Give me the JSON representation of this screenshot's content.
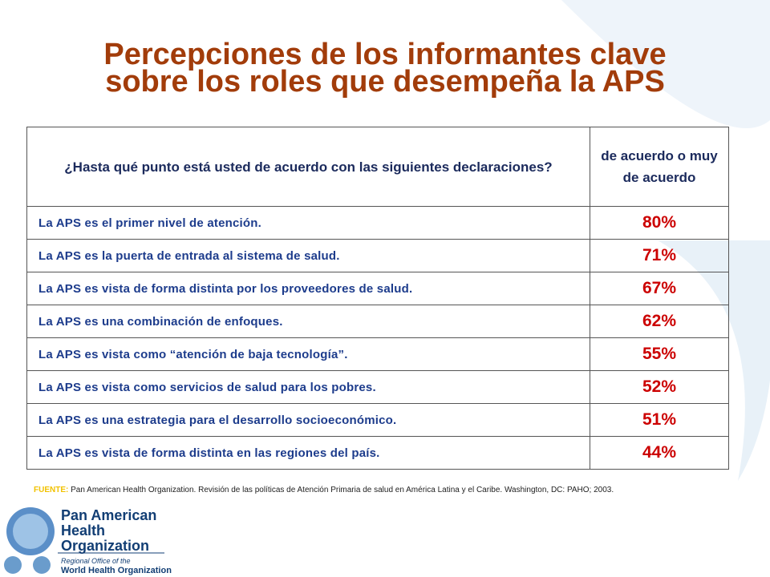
{
  "header": {
    "title": [
      "Percepciones de los informantes clave",
      "sobre los roles que desempeña la APS"
    ]
  },
  "table": {
    "header": [
      "¿Hasta qué punto está usted de acuerdo con las siguientes declaraciones?",
      "de acuerdo o muy de acuerdo"
    ],
    "rows": [
      [
        "La APS es el primer nivel de atención.",
        "80%"
      ],
      [
        "La APS es la puerta de entrada al sistema de salud.",
        "71%"
      ],
      [
        "La APS es vista de forma distinta por los proveedores de salud.",
        "67%"
      ],
      [
        "La APS es una combinación   de enfoques.",
        "62%"
      ],
      [
        "La APS es vista como “atención de baja tecnología”.",
        "55%"
      ],
      [
        "La APS es vista como servicios de salud  para los pobres.",
        "52%"
      ],
      [
        "La APS es una estrategia para el desarrollo socioeconómico.",
        "51%"
      ],
      [
        "La APS es vista de forma distinta en las regiones del país.",
        "44%"
      ]
    ]
  },
  "source": {
    "label": "FUENTE:",
    "text": "Pan American Health Organization. Revisión de las políticas de Atención Primaria de salud en América Latina y el Caribe. Washington, DC: PAHO; 2003."
  },
  "logo": {
    "name": [
      "Pan American",
      "Health",
      "Organization"
    ],
    "sub": [
      "Regional Office of the",
      "World Health Organization"
    ]
  }
}
